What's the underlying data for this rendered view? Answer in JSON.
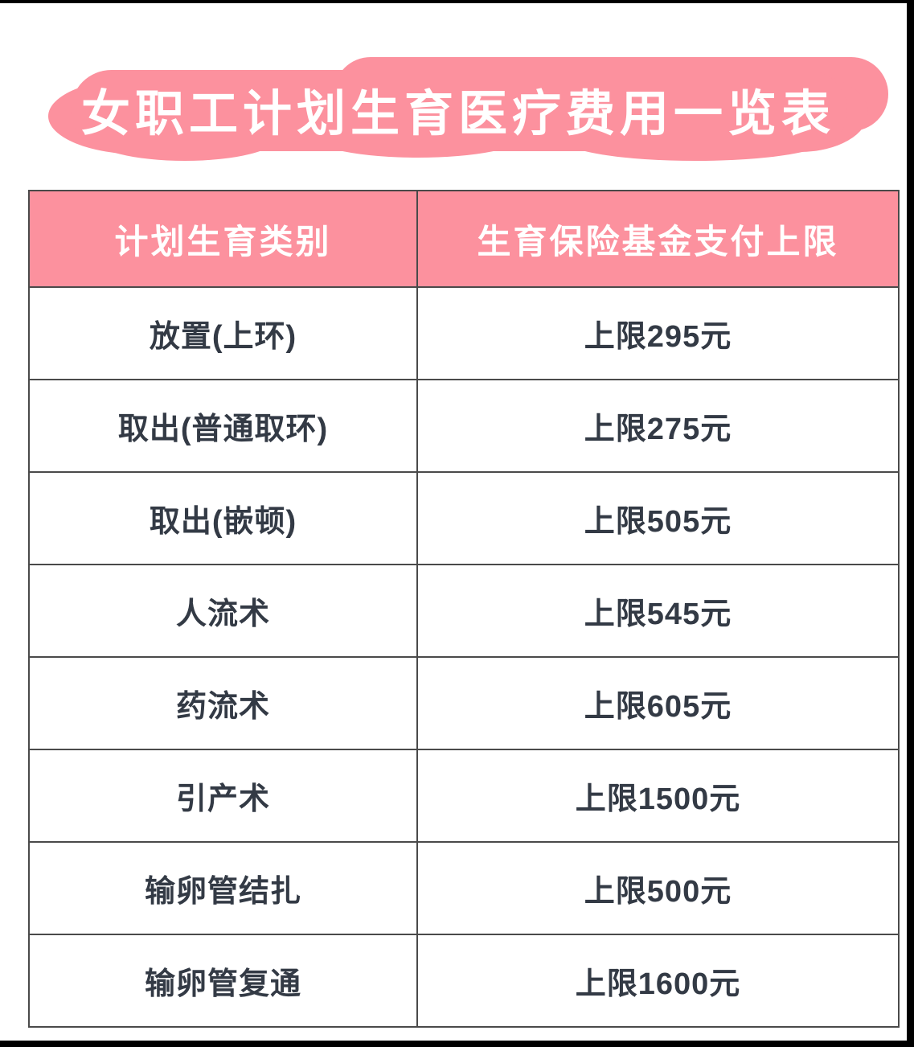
{
  "page": {
    "title": "女职工计划生育医疗费用一览表"
  },
  "colors": {
    "banner_pink": "#FC919E",
    "header_background": "#FC919E",
    "header_text": "#ffffff",
    "cell_text": "#333a45",
    "table_border": "#4a4a4a",
    "frame": "#000000"
  },
  "table": {
    "columns": [
      "计划生育类别",
      "生育保险基金支付上限"
    ],
    "rows": [
      {
        "category": "放置(上环)",
        "limit": "上限295元"
      },
      {
        "category": "取出(普通取环)",
        "limit": "上限275元"
      },
      {
        "category": "取出(嵌顿)",
        "limit": "上限505元"
      },
      {
        "category": "人流术",
        "limit": "上限545元"
      },
      {
        "category": "药流术",
        "limit": "上限605元"
      },
      {
        "category": "引产术",
        "limit": "上限1500元"
      },
      {
        "category": "输卵管结扎",
        "limit": "上限500元"
      },
      {
        "category": "输卵管复通",
        "limit": "上限1600元"
      }
    ]
  }
}
